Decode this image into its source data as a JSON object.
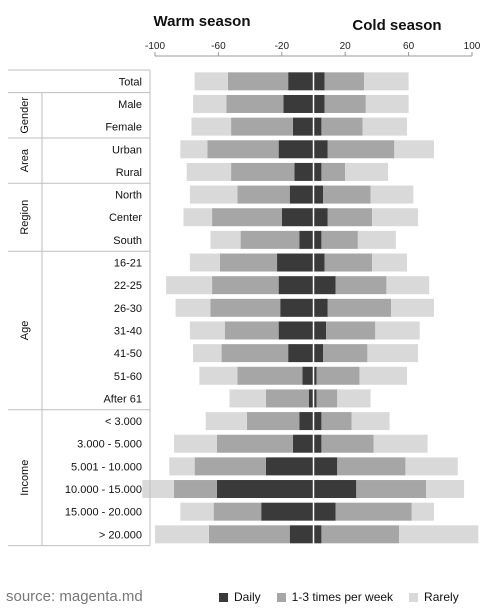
{
  "chart_data": {
    "type": "bar",
    "subtype": "diverging-stacked",
    "panel_titles": {
      "left": "Warm season",
      "right": "Cold season"
    },
    "axis": {
      "min": -100,
      "max": 100,
      "ticks": [
        -100,
        -60,
        -20,
        20,
        60,
        100
      ],
      "grid": false
    },
    "series_names": [
      "Daily",
      "1-3 times per week",
      "Rarely"
    ],
    "colors": {
      "daily": "#3a3a3a",
      "weekly": "#a6a6a6",
      "rarely": "#d9d9d9"
    },
    "groups": [
      {
        "label": "",
        "start": 0,
        "end": 0
      },
      {
        "label": "Gender",
        "start": 1,
        "end": 2
      },
      {
        "label": "Area",
        "start": 3,
        "end": 4
      },
      {
        "label": "Region",
        "start": 5,
        "end": 7
      },
      {
        "label": "Age",
        "start": 8,
        "end": 14
      },
      {
        "label": "Income",
        "start": 15,
        "end": 20
      }
    ],
    "categories": [
      "Total",
      "Male",
      "Female",
      "Urban",
      "Rural",
      "North",
      "Center",
      "South",
      "16-21",
      "22-25",
      "26-30",
      "31-40",
      "41-50",
      "51-60",
      "After 61",
      "< 3.000",
      "3.000 - 5.000",
      "5.001 - 10.000",
      "10.000 - 15.000",
      "15.000 - 20.000",
      "> 20.000"
    ],
    "warm": {
      "daily": [
        16,
        19,
        13,
        22,
        12,
        15,
        20,
        9,
        23,
        22,
        21,
        22,
        16,
        7,
        3,
        9,
        13,
        30,
        61,
        33,
        15
      ],
      "weekly": [
        38,
        36,
        39,
        45,
        40,
        33,
        44,
        37,
        36,
        42,
        44,
        34,
        42,
        41,
        27,
        33,
        48,
        45,
        27,
        30,
        51
      ],
      "rarely": [
        21,
        21,
        25,
        17,
        28,
        30,
        18,
        19,
        19,
        29,
        22,
        22,
        18,
        24,
        23,
        26,
        27,
        16,
        20,
        21,
        34
      ]
    },
    "cold": {
      "daily": [
        7,
        7,
        5,
        9,
        5,
        6,
        9,
        5,
        7,
        14,
        9,
        8,
        6,
        2,
        2,
        5,
        5,
        15,
        27,
        14,
        5
      ],
      "weekly": [
        25,
        26,
        26,
        42,
        15,
        30,
        28,
        23,
        30,
        32,
        40,
        31,
        28,
        27,
        13,
        19,
        33,
        43,
        44,
        48,
        49
      ],
      "rarely": [
        28,
        27,
        28,
        25,
        27,
        27,
        29,
        24,
        22,
        27,
        27,
        28,
        32,
        30,
        21,
        24,
        34,
        33,
        24,
        14,
        50
      ]
    }
  },
  "source": "source: magenta.md"
}
